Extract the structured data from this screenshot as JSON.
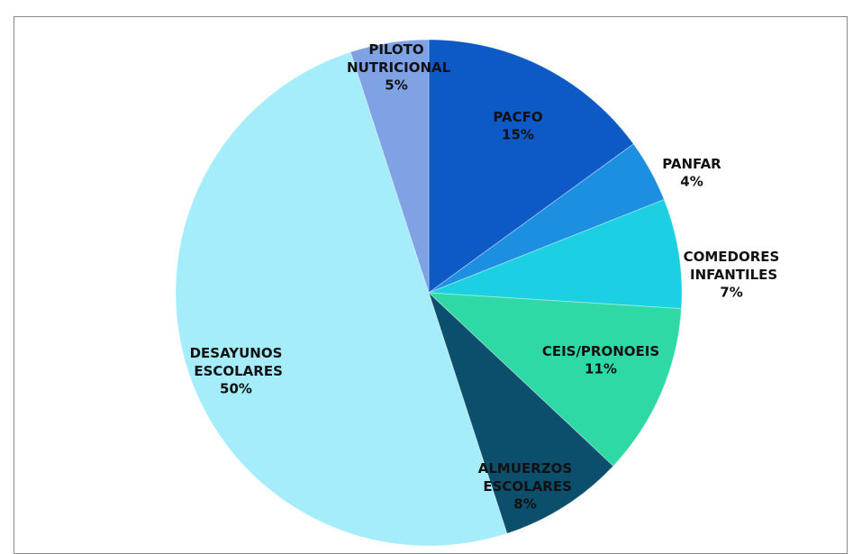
{
  "chart_data": {
    "type": "pie",
    "categories": [
      "PACFO",
      "PANFAR",
      "COMEDORES INFANTILES",
      "CEIS/PRONOEIS",
      "ALMUERZOS ESCOLARES",
      "DESAYUNOS ESCOLARES",
      "PILOTO NUTRICIONAL"
    ],
    "values": [
      15,
      4,
      7,
      11,
      8,
      50,
      5
    ],
    "value_labels": [
      "15%",
      "4%",
      "7%",
      "11%",
      "8%",
      "50%",
      "5%"
    ],
    "colors": [
      "#0d5ac6",
      "#1c8fe0",
      "#1ccfe2",
      "#2fd9a6",
      "#0b4f6c",
      "#a6edfb",
      "#7ea2e4"
    ]
  }
}
